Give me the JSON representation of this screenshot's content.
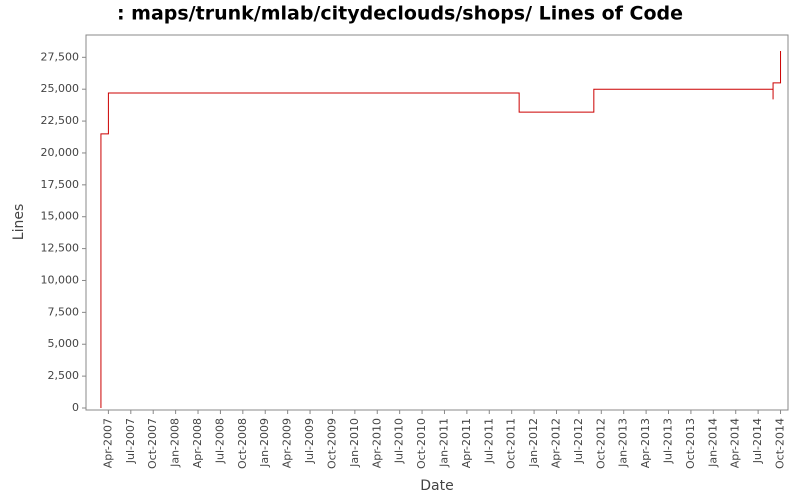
{
  "chart_data": {
    "type": "line",
    "step": true,
    "title": ": maps/trunk/mlab/citydeclouds/shops/ Lines of Code",
    "x_label": "Date",
    "y_label": "Lines",
    "x": [
      "2007-03",
      "2007-03",
      "2007-04",
      "2011-11",
      "2012-09",
      "2014-09",
      "2014-09",
      "2014-10"
    ],
    "series": [
      {
        "name": "Lines",
        "color": "#cc0000",
        "values": [
          0,
          21500,
          24700,
          23200,
          25000,
          24200,
          25500,
          28000
        ]
      }
    ],
    "xlim": [
      "2007-01",
      "2014-11"
    ],
    "xticks": [
      {
        "value": "2007-04",
        "label": "Apr-2007"
      },
      {
        "value": "2007-07",
        "label": "Jul-2007"
      },
      {
        "value": "2007-10",
        "label": "Oct-2007"
      },
      {
        "value": "2008-01",
        "label": "Jan-2008"
      },
      {
        "value": "2008-04",
        "label": "Apr-2008"
      },
      {
        "value": "2008-07",
        "label": "Jul-2008"
      },
      {
        "value": "2008-10",
        "label": "Oct-2008"
      },
      {
        "value": "2009-01",
        "label": "Jan-2009"
      },
      {
        "value": "2009-04",
        "label": "Apr-2009"
      },
      {
        "value": "2009-07",
        "label": "Jul-2009"
      },
      {
        "value": "2009-10",
        "label": "Oct-2009"
      },
      {
        "value": "2010-01",
        "label": "Jan-2010"
      },
      {
        "value": "2010-04",
        "label": "Apr-2010"
      },
      {
        "value": "2010-07",
        "label": "Jul-2010"
      },
      {
        "value": "2010-10",
        "label": "Oct-2010"
      },
      {
        "value": "2011-01",
        "label": "Jan-2011"
      },
      {
        "value": "2011-04",
        "label": "Apr-2011"
      },
      {
        "value": "2011-07",
        "label": "Jul-2011"
      },
      {
        "value": "2011-10",
        "label": "Oct-2011"
      },
      {
        "value": "2012-01",
        "label": "Jan-2012"
      },
      {
        "value": "2012-04",
        "label": "Apr-2012"
      },
      {
        "value": "2012-07",
        "label": "Jul-2012"
      },
      {
        "value": "2012-10",
        "label": "Oct-2012"
      },
      {
        "value": "2013-01",
        "label": "Jan-2013"
      },
      {
        "value": "2013-04",
        "label": "Apr-2013"
      },
      {
        "value": "2013-07",
        "label": "Jul-2013"
      },
      {
        "value": "2013-10",
        "label": "Oct-2013"
      },
      {
        "value": "2014-01",
        "label": "Jan-2014"
      },
      {
        "value": "2014-04",
        "label": "Apr-2014"
      },
      {
        "value": "2014-07",
        "label": "Jul-2014"
      },
      {
        "value": "2014-10",
        "label": "Oct-2014"
      }
    ],
    "ylim": [
      0,
      29250
    ],
    "yticks": [
      0,
      {
        "value": 2500,
        "label": "2,500"
      },
      {
        "value": 5000,
        "label": "5,000"
      },
      {
        "value": 7500,
        "label": "7,500"
      },
      {
        "value": 10000,
        "label": "10,000"
      },
      {
        "value": 12500,
        "label": "12,500"
      },
      {
        "value": 15000,
        "label": "15,000"
      },
      {
        "value": 17500,
        "label": "17,500"
      },
      {
        "value": 20000,
        "label": "20,000"
      },
      {
        "value": 22500,
        "label": "22,500"
      },
      {
        "value": 25000,
        "label": "25,000"
      },
      {
        "value": 27500,
        "label": "27,500"
      }
    ],
    "grid": false
  }
}
